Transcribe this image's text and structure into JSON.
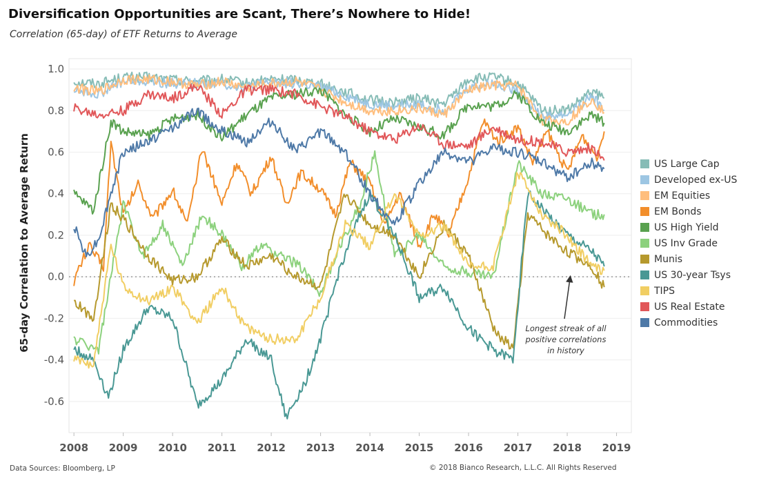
{
  "title": "Diversification Opportunities are Scant, There’s Nowhere to Hide!",
  "subtitle": "Correlation (65-day) of ETF Returns to Average",
  "footer_left": "Data Sources: Bloomberg, LP",
  "footer_right": "© 2018 Bianco Research, L.L.C. All Rights Reserved",
  "annotation_lines": [
    "Longest streak of all",
    "positive correlations",
    "in history"
  ],
  "chart_data": {
    "type": "line",
    "title": "Diversification Opportunities are Scant, There’s Nowhere to Hide!",
    "subtitle": "Correlation (65-day) of ETF Returns to Average",
    "xlabel": "",
    "ylabel": "65-day Correlation to Average Return",
    "xlim": [
      2007.9,
      2019.3
    ],
    "ylim": [
      -0.75,
      1.05
    ],
    "x_ticks": [
      "2008",
      "2009",
      "2010",
      "2011",
      "2012",
      "2013",
      "2014",
      "2015",
      "2016",
      "2017",
      "2018",
      "2019"
    ],
    "y_ticks": [
      "1.0",
      "0.8",
      "0.6",
      "0.4",
      "0.2",
      "0.0",
      "-0.2",
      "-0.4",
      "-0.6"
    ],
    "y_tick_values": [
      1.0,
      0.8,
      0.6,
      0.4,
      0.2,
      0.0,
      -0.2,
      -0.4,
      -0.6
    ],
    "zero_line": true,
    "legend_position": "right",
    "annotation": {
      "text": "Longest streak of all positive correlations in history",
      "x": 2018.0,
      "y": -0.12
    },
    "series": [
      {
        "name": "US Large Cap",
        "color": "#86bcb6",
        "x": [
          2008.0,
          2008.5,
          2009.0,
          2009.5,
          2010.0,
          2010.5,
          2011.0,
          2011.5,
          2012.0,
          2012.5,
          2013.0,
          2013.5,
          2014.0,
          2014.5,
          2015.0,
          2015.5,
          2016.0,
          2016.5,
          2017.0,
          2017.5,
          2018.0,
          2018.5,
          2018.75
        ],
        "y": [
          0.94,
          0.93,
          0.96,
          0.96,
          0.95,
          0.94,
          0.95,
          0.93,
          0.95,
          0.95,
          0.93,
          0.89,
          0.85,
          0.84,
          0.86,
          0.83,
          0.95,
          0.96,
          0.93,
          0.8,
          0.8,
          0.89,
          0.86
        ]
      },
      {
        "name": "Developed ex-US",
        "color": "#9dc6e3",
        "x": [
          2008.0,
          2008.5,
          2009.0,
          2009.5,
          2010.0,
          2010.5,
          2011.0,
          2011.5,
          2012.0,
          2012.5,
          2013.0,
          2013.5,
          2014.0,
          2014.5,
          2015.0,
          2015.5,
          2016.0,
          2016.5,
          2017.0,
          2017.5,
          2018.0,
          2018.5,
          2018.75
        ],
        "y": [
          0.9,
          0.88,
          0.94,
          0.94,
          0.93,
          0.93,
          0.93,
          0.91,
          0.94,
          0.93,
          0.91,
          0.87,
          0.83,
          0.82,
          0.83,
          0.8,
          0.91,
          0.93,
          0.9,
          0.77,
          0.78,
          0.87,
          0.8
        ]
      },
      {
        "name": "EM Equities",
        "color": "#ffbe7d",
        "x": [
          2008.0,
          2008.5,
          2009.0,
          2009.5,
          2010.0,
          2010.5,
          2011.0,
          2011.5,
          2012.0,
          2012.5,
          2013.0,
          2013.5,
          2014.0,
          2014.5,
          2015.0,
          2015.5,
          2016.0,
          2016.5,
          2017.0,
          2017.5,
          2018.0,
          2018.5,
          2018.75
        ],
        "y": [
          0.91,
          0.89,
          0.95,
          0.95,
          0.94,
          0.92,
          0.94,
          0.91,
          0.93,
          0.94,
          0.9,
          0.84,
          0.8,
          0.8,
          0.81,
          0.78,
          0.9,
          0.92,
          0.92,
          0.75,
          0.75,
          0.86,
          0.79
        ]
      },
      {
        "name": "EM Bonds",
        "color": "#f28e2b",
        "x": [
          2008.0,
          2008.3,
          2008.6,
          2008.75,
          2009.0,
          2009.3,
          2009.6,
          2010.0,
          2010.3,
          2010.6,
          2011.0,
          2011.3,
          2011.6,
          2012.0,
          2012.3,
          2012.6,
          2013.0,
          2013.3,
          2013.6,
          2014.0,
          2014.3,
          2014.6,
          2015.0,
          2015.3,
          2015.6,
          2016.0,
          2016.3,
          2016.6,
          2017.0,
          2017.3,
          2017.6,
          2018.0,
          2018.3,
          2018.6,
          2018.75
        ],
        "y": [
          -0.02,
          0.15,
          0.05,
          0.65,
          0.3,
          0.45,
          0.28,
          0.42,
          0.25,
          0.62,
          0.35,
          0.55,
          0.4,
          0.58,
          0.35,
          0.5,
          0.42,
          0.3,
          0.55,
          0.45,
          0.25,
          0.4,
          0.15,
          0.3,
          0.2,
          0.48,
          0.75,
          0.65,
          0.72,
          0.55,
          0.7,
          0.5,
          0.68,
          0.58,
          0.7
        ]
      },
      {
        "name": "US High Yield",
        "color": "#59a14f",
        "x": [
          2008.0,
          2008.4,
          2008.75,
          2009.0,
          2009.5,
          2010.0,
          2010.5,
          2011.0,
          2011.5,
          2012.0,
          2012.5,
          2013.0,
          2013.5,
          2014.0,
          2014.5,
          2015.0,
          2015.5,
          2016.0,
          2016.5,
          2017.0,
          2017.5,
          2018.0,
          2018.5,
          2018.75
        ],
        "y": [
          0.4,
          0.32,
          0.75,
          0.7,
          0.68,
          0.76,
          0.78,
          0.67,
          0.78,
          0.86,
          0.88,
          0.9,
          0.78,
          0.7,
          0.76,
          0.72,
          0.68,
          0.83,
          0.82,
          0.88,
          0.74,
          0.7,
          0.78,
          0.74
        ]
      },
      {
        "name": "US Inv Grade",
        "color": "#8cd17d",
        "x": [
          2008.0,
          2008.5,
          2009.0,
          2009.4,
          2009.8,
          2010.2,
          2010.6,
          2011.0,
          2011.4,
          2011.8,
          2012.2,
          2012.6,
          2013.0,
          2013.4,
          2013.8,
          2014.1,
          2014.5,
          2015.0,
          2015.5,
          2016.0,
          2016.5,
          2017.0,
          2017.5,
          2018.0,
          2018.5,
          2018.75
        ],
        "y": [
          -0.3,
          -0.35,
          0.35,
          0.1,
          0.25,
          0.05,
          0.3,
          0.2,
          0.05,
          0.15,
          0.1,
          0.05,
          -0.08,
          0.15,
          0.35,
          0.6,
          0.1,
          0.2,
          0.05,
          0.02,
          0.0,
          0.55,
          0.4,
          0.38,
          0.3,
          0.3
        ]
      },
      {
        "name": "Munis",
        "color": "#b6992d",
        "x": [
          2008.0,
          2008.4,
          2008.75,
          2009.0,
          2009.5,
          2010.0,
          2010.5,
          2011.0,
          2011.5,
          2012.0,
          2012.5,
          2013.0,
          2013.5,
          2014.0,
          2014.5,
          2015.0,
          2015.5,
          2016.0,
          2016.5,
          2016.9,
          2017.2,
          2017.6,
          2018.0,
          2018.5,
          2018.75
        ],
        "y": [
          -0.12,
          -0.2,
          0.35,
          0.28,
          0.1,
          -0.02,
          0.0,
          0.18,
          0.05,
          0.1,
          0.0,
          -0.05,
          0.4,
          0.25,
          0.2,
          0.0,
          0.25,
          0.1,
          -0.25,
          -0.35,
          0.3,
          0.2,
          0.12,
          0.05,
          -0.05
        ]
      },
      {
        "name": "US 30-year Tsys",
        "color": "#499894",
        "x": [
          2008.0,
          2008.4,
          2008.7,
          2009.0,
          2009.5,
          2010.0,
          2010.5,
          2011.0,
          2011.5,
          2012.0,
          2012.3,
          2012.7,
          2013.0,
          2013.4,
          2013.8,
          2014.0,
          2014.5,
          2015.0,
          2015.5,
          2016.0,
          2016.5,
          2016.9,
          2017.2,
          2017.6,
          2018.0,
          2018.5,
          2018.75
        ],
        "y": [
          -0.35,
          -0.4,
          -0.58,
          -0.35,
          -0.15,
          -0.2,
          -0.62,
          -0.5,
          -0.3,
          -0.4,
          -0.68,
          -0.5,
          -0.3,
          0.05,
          0.3,
          0.4,
          0.2,
          -0.1,
          -0.05,
          -0.25,
          -0.35,
          -0.4,
          0.4,
          0.3,
          0.2,
          0.12,
          0.05
        ]
      },
      {
        "name": "TIPS",
        "color": "#f1ce63",
        "x": [
          2008.0,
          2008.4,
          2008.75,
          2009.0,
          2009.5,
          2010.0,
          2010.5,
          2011.0,
          2011.5,
          2012.0,
          2012.5,
          2013.0,
          2013.5,
          2014.0,
          2014.5,
          2015.0,
          2015.5,
          2016.0,
          2016.5,
          2017.0,
          2017.5,
          2018.0,
          2018.5,
          2018.75
        ],
        "y": [
          -0.4,
          -0.42,
          0.15,
          -0.05,
          -0.12,
          -0.05,
          -0.22,
          -0.05,
          -0.25,
          -0.3,
          -0.3,
          -0.1,
          0.25,
          0.15,
          0.4,
          0.2,
          0.25,
          0.05,
          0.05,
          0.5,
          0.3,
          0.2,
          0.05,
          0.03
        ]
      },
      {
        "name": "US Real Estate",
        "color": "#e15759",
        "x": [
          2008.0,
          2008.5,
          2009.0,
          2009.5,
          2010.0,
          2010.5,
          2011.0,
          2011.5,
          2012.0,
          2012.5,
          2013.0,
          2013.5,
          2014.0,
          2014.5,
          2015.0,
          2015.5,
          2016.0,
          2016.5,
          2017.0,
          2017.5,
          2018.0,
          2018.5,
          2018.75
        ],
        "y": [
          0.81,
          0.78,
          0.8,
          0.88,
          0.86,
          0.92,
          0.78,
          0.9,
          0.9,
          0.88,
          0.82,
          0.77,
          0.7,
          0.66,
          0.73,
          0.64,
          0.63,
          0.72,
          0.66,
          0.65,
          0.6,
          0.62,
          0.56
        ]
      },
      {
        "name": "Commodities",
        "color": "#4e79a7",
        "x": [
          2008.0,
          2008.25,
          2008.5,
          2008.75,
          2009.0,
          2009.5,
          2010.0,
          2010.5,
          2011.0,
          2011.5,
          2012.0,
          2012.5,
          2013.0,
          2013.5,
          2014.0,
          2014.5,
          2015.0,
          2015.5,
          2016.0,
          2016.5,
          2017.0,
          2017.5,
          2018.0,
          2018.5,
          2018.75
        ],
        "y": [
          0.25,
          0.1,
          0.18,
          0.4,
          0.6,
          0.65,
          0.72,
          0.8,
          0.7,
          0.65,
          0.75,
          0.6,
          0.7,
          0.6,
          0.4,
          0.25,
          0.45,
          0.6,
          0.55,
          0.62,
          0.6,
          0.55,
          0.48,
          0.55,
          0.52
        ]
      }
    ]
  }
}
